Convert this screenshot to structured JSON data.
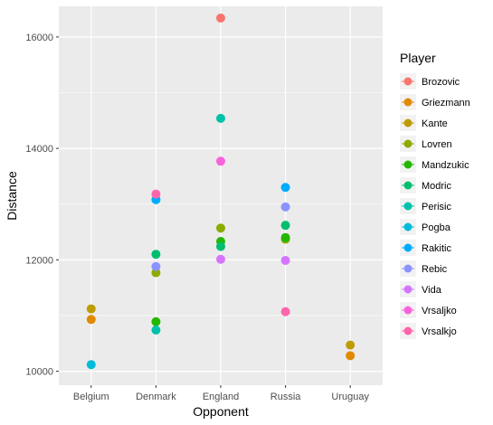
{
  "chart_data": {
    "type": "scatter",
    "xlabel": "Opponent",
    "ylabel": "Distance",
    "categories": [
      "Belgium",
      "Denmark",
      "England",
      "Russia",
      "Uruguay"
    ],
    "ylim": [
      9750,
      16550
    ],
    "yticks": [
      10000,
      12000,
      14000,
      16000
    ],
    "grid": true,
    "legend": {
      "title": "Player",
      "placement": "right"
    },
    "series": [
      {
        "name": "Brozovic",
        "color": "#F8766D",
        "points": [
          {
            "x": "England",
            "y": 16340
          }
        ]
      },
      {
        "name": "Griezmann",
        "color": "#E18A00",
        "points": [
          {
            "x": "Belgium",
            "y": 10930
          },
          {
            "x": "Uruguay",
            "y": 10280
          }
        ]
      },
      {
        "name": "Kante",
        "color": "#BE9C00",
        "points": [
          {
            "x": "Belgium",
            "y": 11120
          },
          {
            "x": "Uruguay",
            "y": 10470
          }
        ]
      },
      {
        "name": "Lovren",
        "color": "#8CAB00",
        "points": [
          {
            "x": "Denmark",
            "y": 11770
          },
          {
            "x": "England",
            "y": 12570
          },
          {
            "x": "Russia",
            "y": 12370
          }
        ]
      },
      {
        "name": "Mandzukic",
        "color": "#24B700",
        "points": [
          {
            "x": "Denmark",
            "y": 10890
          },
          {
            "x": "England",
            "y": 12330
          },
          {
            "x": "Russia",
            "y": 12400
          }
        ]
      },
      {
        "name": "Modric",
        "color": "#00BE70",
        "points": [
          {
            "x": "Denmark",
            "y": 12100
          },
          {
            "x": "England",
            "y": 12240
          },
          {
            "x": "Russia",
            "y": 12620
          }
        ]
      },
      {
        "name": "Perisic",
        "color": "#00C1AB",
        "points": [
          {
            "x": "Denmark",
            "y": 10740
          },
          {
            "x": "England",
            "y": 14540
          }
        ]
      },
      {
        "name": "Pogba",
        "color": "#00BBDA",
        "points": [
          {
            "x": "Belgium",
            "y": 10120
          }
        ]
      },
      {
        "name": "Rakitic",
        "color": "#00ACFC",
        "points": [
          {
            "x": "Denmark",
            "y": 13080
          },
          {
            "x": "Russia",
            "y": 13300
          }
        ]
      },
      {
        "name": "Rebic",
        "color": "#8B93FF",
        "points": [
          {
            "x": "Denmark",
            "y": 11880
          },
          {
            "x": "Russia",
            "y": 12950
          }
        ]
      },
      {
        "name": "Vida",
        "color": "#D575FE",
        "points": [
          {
            "x": "England",
            "y": 12010
          },
          {
            "x": "Russia",
            "y": 11990
          }
        ]
      },
      {
        "name": "Vrsaljko",
        "color": "#F962DD",
        "points": [
          {
            "x": "England",
            "y": 13770
          }
        ]
      },
      {
        "name": "Vrsalkjo",
        "color": "#FF65AC",
        "points": [
          {
            "x": "Denmark",
            "y": 13180
          },
          {
            "x": "Russia",
            "y": 11070
          }
        ]
      }
    ]
  }
}
